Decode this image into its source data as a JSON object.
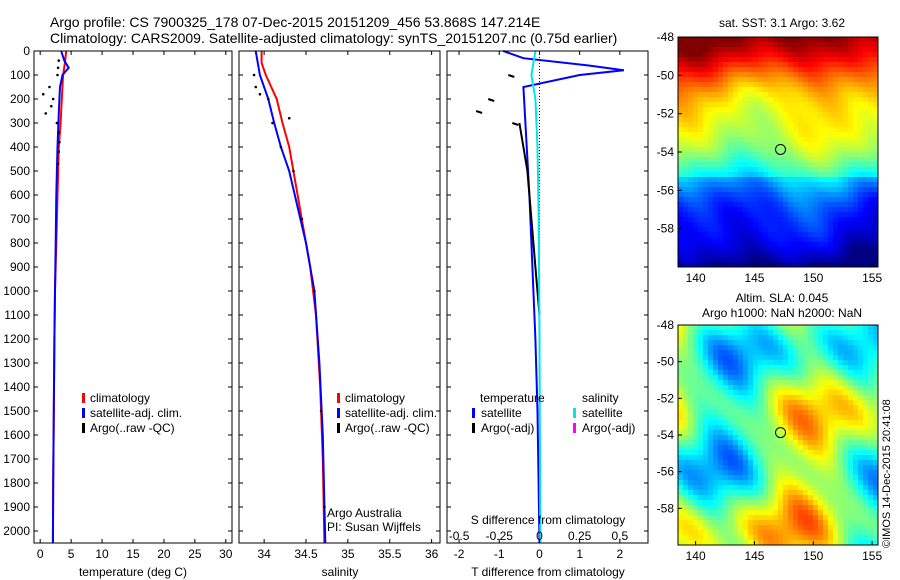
{
  "header": {
    "line1": "Argo profile: CS 7900325_178 07-Dec-2015 20151209_456 53.868S 147.214E",
    "line2": "Climatology: CARS2009. Satellite-adjusted climatology: synTS_20151207.nc (0.75d earlier)"
  },
  "side_note": "©IMOS 14-Dec-2015 20:41:08",
  "colors": {
    "climatology": "#ff0000",
    "satellite": "#0000ff",
    "argo": "#000000",
    "sat_salinity": "#00e5ee",
    "argo_adj_salinity": "#ff00ff"
  },
  "chart_data": [
    {
      "type": "line",
      "panel": "temperature",
      "xlabel": "temperature (deg C)",
      "xlim": [
        -1,
        31
      ],
      "ylim": [
        0,
        2050
      ],
      "xticks": [
        "0",
        "5",
        "10",
        "15",
        "20",
        "25",
        "30"
      ],
      "yticks": [
        "0",
        "100",
        "200",
        "300",
        "400",
        "500",
        "600",
        "700",
        "800",
        "900",
        "1000",
        "1100",
        "1200",
        "1300",
        "1400",
        "1500",
        "1600",
        "1700",
        "1800",
        "1900",
        "2000"
      ],
      "legend": [
        "climatology",
        "satellite-adj. clim.",
        "Argo(..raw -QC)"
      ],
      "series": [
        {
          "name": "climatology",
          "style": "line",
          "x": [
            4.2,
            4.0,
            3.7,
            3.5,
            3.3,
            3.0,
            2.8,
            2.6,
            2.4,
            2.3,
            2.2,
            2.1,
            2.05
          ],
          "y": [
            0,
            50,
            100,
            200,
            300,
            400,
            600,
            800,
            1000,
            1200,
            1500,
            1800,
            2050
          ]
        },
        {
          "name": "satellite-adj. clim.",
          "style": "line",
          "x": [
            3.4,
            3.9,
            4.6,
            3.6,
            3.2,
            3.1,
            2.95,
            2.8,
            2.6,
            2.5,
            2.4,
            2.3,
            2.2,
            2.1,
            2.05
          ],
          "y": [
            0,
            40,
            70,
            100,
            150,
            200,
            300,
            400,
            600,
            800,
            1000,
            1200,
            1500,
            1800,
            2050
          ]
        },
        {
          "name": "Argo(..raw -QC)",
          "style": "dots",
          "x": [
            3.0,
            2.9,
            2.8,
            1.5,
            0.5,
            2.1,
            1.8,
            0.9,
            2.7,
            3.0,
            3.1,
            3.0,
            2.9
          ],
          "y": [
            40,
            70,
            100,
            150,
            180,
            200,
            230,
            260,
            300,
            340,
            380,
            420,
            470
          ]
        }
      ]
    },
    {
      "type": "line",
      "panel": "salinity",
      "xlabel": "salinity",
      "xlim": [
        33.7,
        36.1
      ],
      "ylim": [
        0,
        2050
      ],
      "xticks": [
        "34",
        "34.5",
        "35",
        "35.5",
        "36"
      ],
      "legend": [
        "climatology",
        "satellite-adj. clim.",
        "Argo(..raw -QC)"
      ],
      "annotation": [
        "Argo Australia",
        "PI: Susan Wijffels"
      ],
      "series": [
        {
          "name": "climatology",
          "style": "line",
          "x": [
            33.97,
            33.97,
            34.02,
            34.15,
            34.22,
            34.3,
            34.4,
            34.45,
            34.55,
            34.62,
            34.67,
            34.7,
            34.72
          ],
          "y": [
            0,
            50,
            100,
            200,
            300,
            400,
            600,
            700,
            900,
            1100,
            1400,
            1700,
            2050
          ]
        },
        {
          "name": "satellite-adj. clim.",
          "style": "line",
          "x": [
            33.9,
            33.95,
            34.05,
            34.12,
            34.2,
            34.3,
            34.4,
            34.5,
            34.6,
            34.66,
            34.7,
            34.73
          ],
          "y": [
            0,
            100,
            200,
            300,
            400,
            500,
            650,
            800,
            1000,
            1300,
            1600,
            2050
          ]
        },
        {
          "name": "Argo(..raw -QC)",
          "style": "dots",
          "x": [
            33.88,
            33.9,
            33.95,
            34.05,
            34.3,
            34.1,
            34.2,
            34.35,
            34.45,
            34.6,
            34.68,
            34.72
          ],
          "y": [
            100,
            150,
            180,
            200,
            280,
            300,
            400,
            500,
            700,
            1000,
            1500,
            1900
          ]
        }
      ]
    },
    {
      "type": "line",
      "panel": "differences",
      "xlabel": "T difference from climatology",
      "xlabel_top": "S difference from climatology",
      "xlim": [
        -2.3,
        2.7
      ],
      "ylim": [
        0,
        2050
      ],
      "xticks": [
        "-2",
        "-1",
        "0",
        "1",
        "2"
      ],
      "xticks_top": [
        "-0.5",
        "-0.25",
        "0",
        "0.25",
        "0.5"
      ],
      "legend_titles": [
        "temperature",
        "salinity"
      ],
      "legend": [
        "satellite",
        "Argo(-adj)",
        "satellite",
        "Argo(-adj)"
      ],
      "series": [
        {
          "name": "temperature satellite",
          "style": "line",
          "x": [
            -0.9,
            -0.4,
            1.2,
            2.1,
            1.0,
            -0.4,
            -0.35,
            -0.25,
            -0.2,
            -0.15,
            -0.1,
            -0.05,
            0
          ],
          "y": [
            0,
            30,
            60,
            80,
            100,
            150,
            300,
            600,
            800,
            1000,
            1200,
            1500,
            2050
          ]
        },
        {
          "name": "temperature Argo(-adj)",
          "style": "line",
          "x": [
            -0.5,
            -0.4,
            -0.3,
            -0.25,
            -0.2,
            -0.1,
            0
          ],
          "y": [
            300,
            400,
            500,
            600,
            700,
            900,
            1100
          ]
        },
        {
          "name": "salinity satellite",
          "style": "line",
          "x": [
            -0.1,
            -0.15,
            -0.2,
            -0.1,
            -0.05,
            -0.02,
            0,
            0.02
          ],
          "y": [
            0,
            50,
            100,
            200,
            400,
            700,
            1200,
            2050
          ]
        },
        {
          "name": "temperature Argo(-adj)",
          "style": "dashes",
          "x": [
            -0.7,
            -1.2,
            -1.5,
            -0.6
          ],
          "y": [
            100,
            200,
            250,
            300
          ]
        }
      ]
    },
    {
      "type": "heatmap",
      "panel": "sst-map",
      "title": "sat. SST: 3.1 Argo: 3.62",
      "xticks": [
        "140",
        "145",
        "150",
        "155"
      ],
      "yticks": [
        "-48",
        "-50",
        "-52",
        "-54",
        "-56",
        "-58"
      ],
      "xlim": [
        138.5,
        155.5
      ],
      "ylim": [
        -60,
        -48
      ],
      "marker": {
        "lon": 147.214,
        "lat": -53.868
      }
    },
    {
      "type": "heatmap",
      "panel": "sla-map",
      "title": "Altim. SLA: 0.045",
      "subtitle": "Argo h1000: NaN h2000: NaN",
      "xticks": [
        "140",
        "145",
        "150",
        "155"
      ],
      "yticks": [
        "-48",
        "-50",
        "-52",
        "-54",
        "-56",
        "-58"
      ],
      "xlim": [
        138.5,
        155.5
      ],
      "ylim": [
        -60,
        -48
      ],
      "marker": {
        "lon": 147.214,
        "lat": -53.868
      }
    }
  ]
}
